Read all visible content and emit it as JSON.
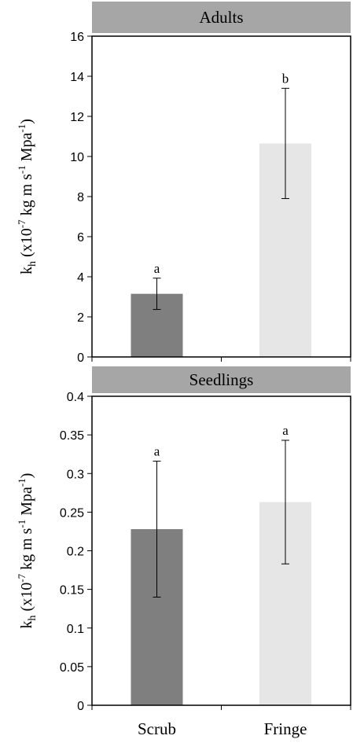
{
  "chart_data": [
    {
      "type": "bar",
      "title": "Adults",
      "ylabel_main": "k",
      "ylabel_sub": "h",
      "ylabel_rest": " (x10",
      "ylabel_exp1": "-7",
      "ylabel_mid": " kg m s",
      "ylabel_exp2": "-1",
      "ylabel_mid2": " Mpa",
      "ylabel_exp3": "-1",
      "ylabel_end": ")",
      "categories": [
        "Scrub",
        "Fringe"
      ],
      "values": [
        3.15,
        10.65
      ],
      "errors": [
        0.78,
        2.75
      ],
      "letters": [
        "a",
        "b"
      ],
      "ylim": [
        0,
        16
      ],
      "yticks": [
        0,
        2,
        4,
        6,
        8,
        10,
        12,
        14,
        16
      ],
      "ytick_labels": [
        "0",
        "2",
        "4",
        "6",
        "8",
        "10",
        "12",
        "14",
        "16"
      ],
      "bar_colors": [
        "#7f7f7f",
        "#e6e6e6"
      ],
      "grid": false
    },
    {
      "type": "bar",
      "title": "Seedlings",
      "ylabel_main": "k",
      "ylabel_sub": "h",
      "ylabel_rest": " (x10",
      "ylabel_exp1": "-7",
      "ylabel_mid": " kg m s",
      "ylabel_exp2": "-1",
      "ylabel_mid2": " Mpa",
      "ylabel_exp3": "-1",
      "ylabel_end": ")",
      "categories": [
        "Scrub",
        "Fringe"
      ],
      "values": [
        0.228,
        0.263
      ],
      "errors": [
        0.088,
        0.08
      ],
      "letters": [
        "a",
        "a"
      ],
      "ylim": [
        0,
        0.4
      ],
      "yticks": [
        0,
        0.05,
        0.1,
        0.15,
        0.2,
        0.25,
        0.3,
        0.35,
        0.4
      ],
      "ytick_labels": [
        "0",
        "0.05",
        "0.1",
        "0.15",
        "0.2",
        "0.25",
        "0.3",
        "0.35",
        "0.4"
      ],
      "bar_colors": [
        "#7f7f7f",
        "#e6e6e6"
      ],
      "grid": false
    }
  ],
  "x_categories": [
    "Scrub",
    "Fringe"
  ],
  "title_bar_color": "#a6a6a6"
}
